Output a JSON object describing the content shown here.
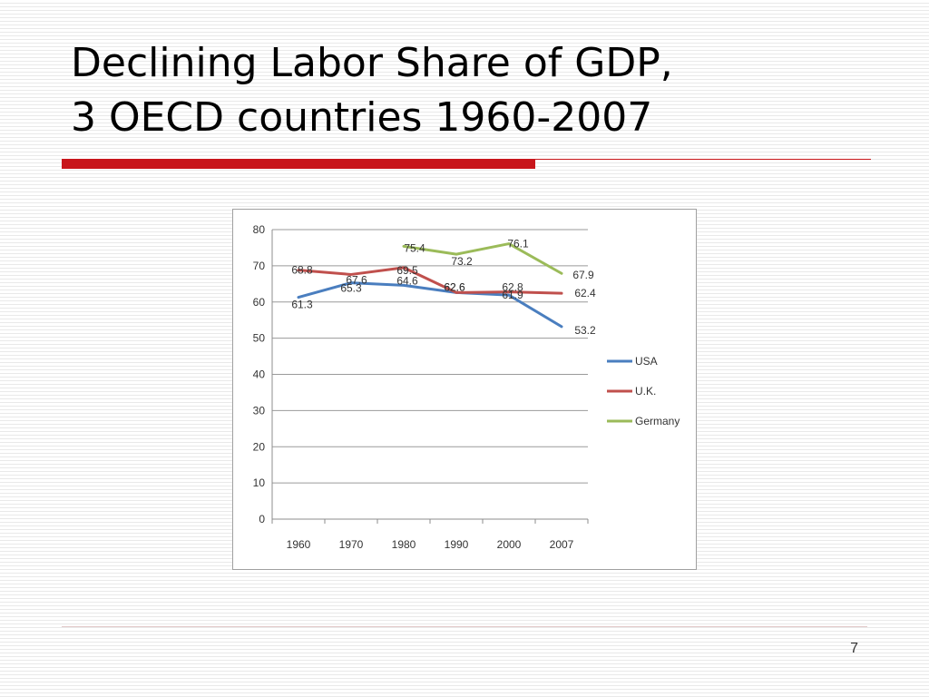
{
  "slide": {
    "title_line1": "Declining Labor Share of GDP,",
    "title_line2": "3 OECD countries 1960-2007",
    "page_number": "7",
    "colors": {
      "accent_red": "#c8161b"
    }
  },
  "chart_data": {
    "type": "line",
    "title": "",
    "xlabel": "",
    "ylabel": "",
    "categories": [
      "1960",
      "1970",
      "1980",
      "1990",
      "2000",
      "2007"
    ],
    "ylim": [
      0,
      80
    ],
    "yticks": [
      0,
      10,
      20,
      30,
      40,
      50,
      60,
      70,
      80
    ],
    "grid": true,
    "legend_position": "right",
    "series": [
      {
        "name": "USA",
        "color": "#4a7ebf",
        "values": [
          61.3,
          65.3,
          64.6,
          62.6,
          61.9,
          53.2
        ],
        "labels": [
          "61.3",
          "65.3",
          "64.6",
          "62.6",
          "61.9",
          "53.2"
        ]
      },
      {
        "name": "U.K.",
        "color": "#c0504d",
        "values": [
          68.8,
          67.6,
          69.5,
          62.6,
          62.8,
          62.4
        ],
        "labels": [
          "68.8",
          "67.6",
          "69.5",
          "62.6",
          "62.8",
          "62.4"
        ]
      },
      {
        "name": "Germany",
        "color": "#9bbb59",
        "values": [
          null,
          null,
          75.4,
          73.2,
          76.1,
          67.9
        ],
        "labels": [
          null,
          null,
          "75.4",
          "73.2",
          "76.1",
          "67.9"
        ]
      }
    ]
  }
}
